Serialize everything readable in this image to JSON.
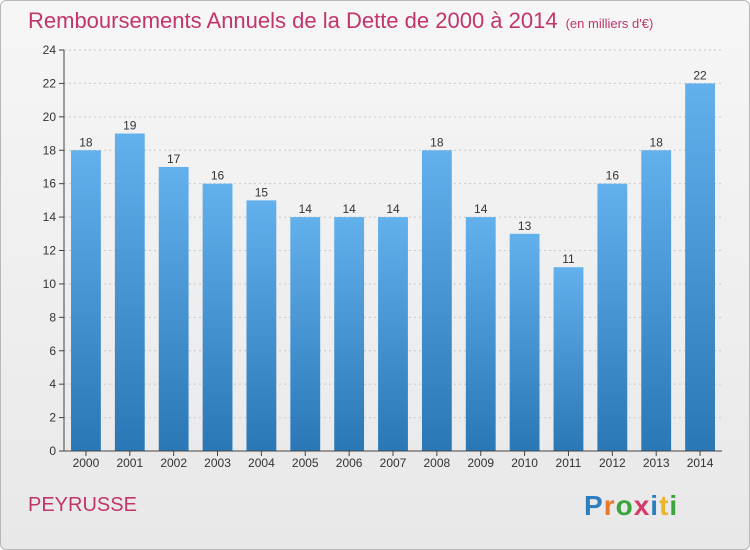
{
  "header": {
    "title": "Remboursements Annuels de la Dette de 2000 à 2014",
    "unit": "(en milliers d'€)"
  },
  "footer": {
    "place": "PEYRUSSE"
  },
  "logo": {
    "letters": [
      "P",
      "r",
      "o",
      "x",
      "i",
      "t",
      "i"
    ],
    "colors": [
      "#2e7fc0",
      "#e8762b",
      "#3aa53a",
      "#d63a6a",
      "#2e7fc0",
      "#e8b52b",
      "#3aa53a"
    ]
  },
  "colors": {
    "bar_light": "#62b0ec",
    "bar_dark": "#2a77b6",
    "accent": "#c2346c"
  },
  "chart_data": {
    "type": "bar",
    "title": "Remboursements Annuels de la Dette de 2000 à 2014",
    "xlabel": "",
    "ylabel": "",
    "categories": [
      "2000",
      "2001",
      "2002",
      "2003",
      "2004",
      "2005",
      "2006",
      "2007",
      "2008",
      "2009",
      "2010",
      "2011",
      "2012",
      "2013",
      "2014"
    ],
    "values": [
      18,
      19,
      17,
      16,
      15,
      14,
      14,
      14,
      18,
      14,
      13,
      11,
      16,
      18,
      22
    ],
    "ylim": [
      0,
      24
    ],
    "yticks": [
      0,
      2,
      4,
      6,
      8,
      10,
      12,
      14,
      16,
      18,
      20,
      22,
      24
    ],
    "grid": true
  }
}
